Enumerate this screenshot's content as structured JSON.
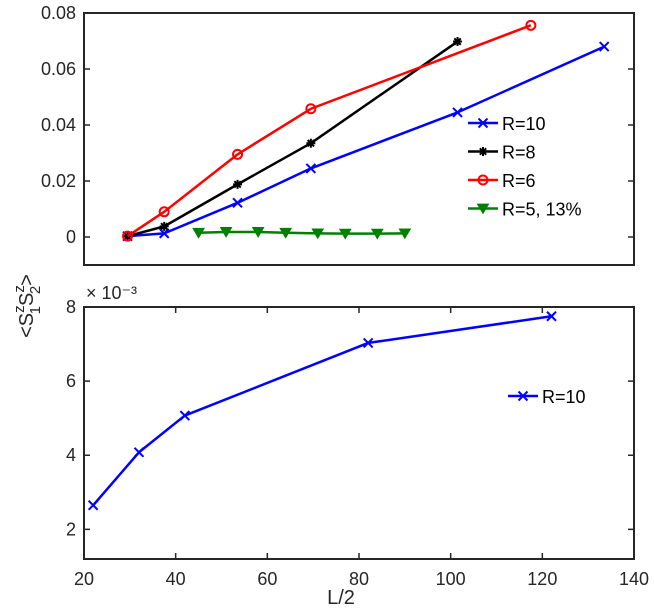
{
  "chart_data": [
    {
      "type": "line",
      "panel": "top",
      "xlim": [
        20,
        140
      ],
      "ylim": [
        -0.01,
        0.08
      ],
      "yticks": [
        0,
        0.02,
        0.04,
        0.06,
        0.08
      ],
      "ytick_labels": [
        "0",
        "0.02",
        "0.04",
        "0.06",
        "0.08"
      ],
      "xticks": [],
      "legend_position": "right",
      "series": [
        {
          "name": "R=10",
          "color": "#0000FF",
          "marker": "x",
          "x": [
            29.5,
            37.5,
            53.5,
            69.5,
            101.5,
            133.5
          ],
          "y": [
            0.0003,
            0.0013,
            0.0122,
            0.0245,
            0.0445,
            0.068
          ]
        },
        {
          "name": "R=8",
          "color": "#000000",
          "marker": "star",
          "x": [
            29.5,
            37.5,
            53.5,
            69.5,
            101.5
          ],
          "y": [
            0.0003,
            0.0038,
            0.0188,
            0.0335,
            0.0698
          ]
        },
        {
          "name": "R=6",
          "color": "#FF0000",
          "marker": "circle",
          "x": [
            29.5,
            37.5,
            53.5,
            69.5,
            117.5
          ],
          "y": [
            0.0003,
            0.009,
            0.0295,
            0.0458,
            0.0756
          ]
        },
        {
          "name": "R=5, 13%",
          "color": "#008000",
          "marker": "triangle-down",
          "x": [
            45,
            51,
            58,
            64,
            71,
            77,
            84,
            90
          ],
          "y": [
            0.0015,
            0.0018,
            0.0018,
            0.0015,
            0.0013,
            0.0012,
            0.0012,
            0.0013
          ]
        }
      ]
    },
    {
      "type": "line",
      "panel": "bottom",
      "xlim": [
        20,
        140
      ],
      "ylim": [
        1.2,
        8.0
      ],
      "yticks": [
        2,
        4,
        6,
        8
      ],
      "ytick_labels": [
        "2",
        "4",
        "6",
        "8"
      ],
      "xticks": [
        20,
        40,
        60,
        80,
        100,
        120,
        140
      ],
      "xtick_labels": [
        "20",
        "40",
        "60",
        "80",
        "100",
        "120",
        "140"
      ],
      "xlabel": "L/2",
      "y_exponent": "× 10⁻³",
      "legend_position": "right",
      "series": [
        {
          "name": "R=10",
          "color": "#0000FF",
          "marker": "x",
          "x": [
            22,
            32,
            42,
            82,
            122
          ],
          "y": [
            2.65,
            4.08,
            5.07,
            7.03,
            7.75
          ]
        }
      ]
    }
  ],
  "shared_ylabel": "<S1zS2z>"
}
